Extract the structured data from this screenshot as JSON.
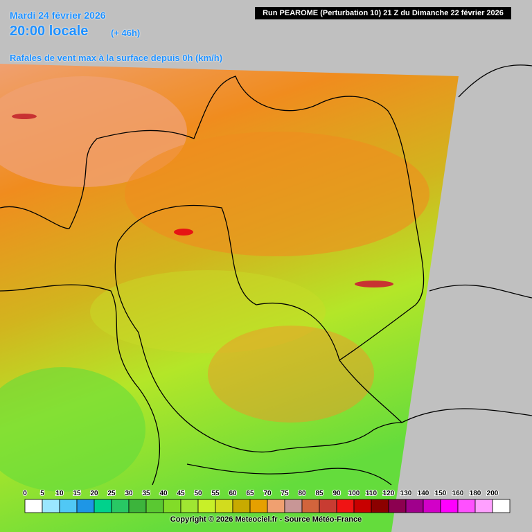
{
  "header": {
    "date": "Mardi 24 février 2026",
    "time": "20:00 locale",
    "lead": "(+ 46h)",
    "run": "Run PEAROME (Perturbation 10) 21 Z du Dimanche 22 février 2026",
    "title": "Rafales de vent max à la surface depuis 0h (km/h)"
  },
  "legend": {
    "items": [
      {
        "label": "0",
        "color": "#ffffff"
      },
      {
        "label": "5",
        "color": "#9be7ff"
      },
      {
        "label": "10",
        "color": "#50c8f5"
      },
      {
        "label": "15",
        "color": "#1e96e6"
      },
      {
        "label": "20",
        "color": "#00d28c"
      },
      {
        "label": "25",
        "color": "#28c864"
      },
      {
        "label": "30",
        "color": "#3cb43c"
      },
      {
        "label": "35",
        "color": "#5ac832"
      },
      {
        "label": "40",
        "color": "#82dc28"
      },
      {
        "label": "45",
        "color": "#a0e632"
      },
      {
        "label": "50",
        "color": "#c8f028"
      },
      {
        "label": "55",
        "color": "#d2dc1e"
      },
      {
        "label": "60",
        "color": "#c8aa00"
      },
      {
        "label": "65",
        "color": "#e6a000"
      },
      {
        "label": "70",
        "color": "#f0a070"
      },
      {
        "label": "75",
        "color": "#c89696"
      },
      {
        "label": "80",
        "color": "#d2643c"
      },
      {
        "label": "85",
        "color": "#c83c32"
      },
      {
        "label": "90",
        "color": "#f01414"
      },
      {
        "label": "100",
        "color": "#c80000"
      },
      {
        "label": "110",
        "color": "#8c0000"
      },
      {
        "label": "120",
        "color": "#8c0050"
      },
      {
        "label": "130",
        "color": "#a0008c"
      },
      {
        "label": "140",
        "color": "#d200c8"
      },
      {
        "label": "150",
        "color": "#ff00ff"
      },
      {
        "label": "160",
        "color": "#ff50ff"
      },
      {
        "label": "180",
        "color": "#ffa0ff"
      },
      {
        "label": "200",
        "color": "#ffffff"
      }
    ]
  },
  "footer": {
    "copyright": "Copyright © 2026 Meteociel.fr - Source Météo-France"
  }
}
